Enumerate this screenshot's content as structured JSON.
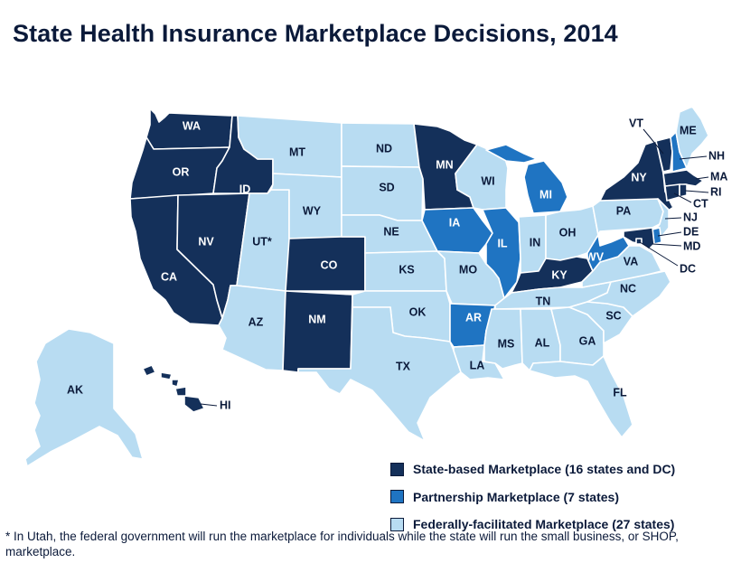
{
  "title": "State Health Insurance Marketplace Decisions, 2014",
  "colors": {
    "state_based": "#14305a",
    "partnership": "#1f74c2",
    "federal": "#b8dcf2"
  },
  "legend": [
    {
      "key": "state_based",
      "label": "State-based Marketplace (16 states and DC)"
    },
    {
      "key": "partnership",
      "label": "Partnership Marketplace (7 states)"
    },
    {
      "key": "federal",
      "label": "Federally-facilitated Marketplace (27 states)"
    }
  ],
  "footnote": "* In Utah, the federal government will run the marketplace for individuals while the state will run the small business, or SHOP, marketplace.",
  "states": {
    "WA": {
      "label": "WA",
      "category": "state_based"
    },
    "OR": {
      "label": "OR",
      "category": "state_based"
    },
    "CA": {
      "label": "CA",
      "category": "state_based"
    },
    "ID": {
      "label": "ID",
      "category": "state_based"
    },
    "NV": {
      "label": "NV",
      "category": "state_based"
    },
    "UT": {
      "label": "UT*",
      "category": "federal"
    },
    "AZ": {
      "label": "AZ",
      "category": "federal"
    },
    "MT": {
      "label": "MT",
      "category": "federal"
    },
    "WY": {
      "label": "WY",
      "category": "federal"
    },
    "CO": {
      "label": "CO",
      "category": "state_based"
    },
    "NM": {
      "label": "NM",
      "category": "state_based"
    },
    "ND": {
      "label": "ND",
      "category": "federal"
    },
    "SD": {
      "label": "SD",
      "category": "federal"
    },
    "NE": {
      "label": "NE",
      "category": "federal"
    },
    "KS": {
      "label": "KS",
      "category": "federal"
    },
    "OK": {
      "label": "OK",
      "category": "federal"
    },
    "TX": {
      "label": "TX",
      "category": "federal"
    },
    "MN": {
      "label": "MN",
      "category": "state_based"
    },
    "IA": {
      "label": "IA",
      "category": "partnership"
    },
    "MO": {
      "label": "MO",
      "category": "federal"
    },
    "AR": {
      "label": "AR",
      "category": "partnership"
    },
    "LA": {
      "label": "LA",
      "category": "federal"
    },
    "WI": {
      "label": "WI",
      "category": "federal"
    },
    "IL": {
      "label": "IL",
      "category": "partnership"
    },
    "MI": {
      "label": "MI",
      "category": "partnership"
    },
    "IN": {
      "label": "IN",
      "category": "federal"
    },
    "OH": {
      "label": "OH",
      "category": "federal"
    },
    "KY": {
      "label": "KY",
      "category": "state_based"
    },
    "TN": {
      "label": "TN",
      "category": "federal"
    },
    "MS": {
      "label": "MS",
      "category": "federal"
    },
    "AL": {
      "label": "AL",
      "category": "federal"
    },
    "GA": {
      "label": "GA",
      "category": "federal"
    },
    "FL": {
      "label": "FL",
      "category": "federal"
    },
    "SC": {
      "label": "SC",
      "category": "federal"
    },
    "NC": {
      "label": "NC",
      "category": "federal"
    },
    "VA": {
      "label": "VA",
      "category": "federal"
    },
    "WV": {
      "label": "WV",
      "category": "partnership"
    },
    "PA": {
      "label": "PA",
      "category": "federal"
    },
    "NY": {
      "label": "NY",
      "category": "state_based"
    },
    "VT": {
      "label": "VT",
      "category": "state_based"
    },
    "NH": {
      "label": "NH",
      "category": "partnership"
    },
    "ME": {
      "label": "ME",
      "category": "federal"
    },
    "MA": {
      "label": "MA",
      "category": "state_based"
    },
    "RI": {
      "label": "RI",
      "category": "state_based"
    },
    "CT": {
      "label": "CT",
      "category": "state_based"
    },
    "NJ": {
      "label": "NJ",
      "category": "federal"
    },
    "DE": {
      "label": "DE",
      "category": "partnership"
    },
    "MD": {
      "label": "MD",
      "category": "state_based"
    },
    "DC": {
      "label": "DC",
      "category": "state_based"
    },
    "AK": {
      "label": "AK",
      "category": "federal"
    },
    "HI": {
      "label": "HI",
      "category": "state_based"
    }
  }
}
